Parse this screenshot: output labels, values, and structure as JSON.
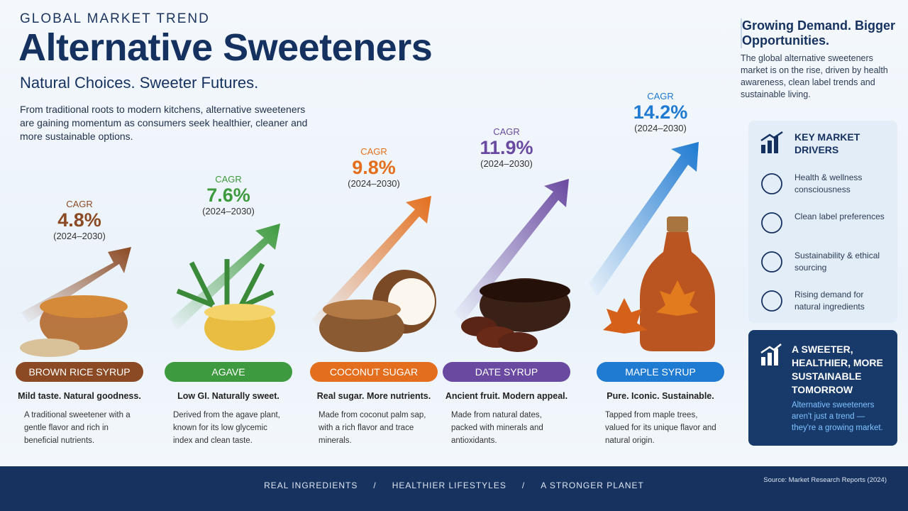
{
  "header": {
    "eyebrow": "GLOBAL MARKET TREND",
    "title": "Alternative Sweeteners",
    "subtitle": "Natural Choices. Sweeter Futures.",
    "intro": "From traditional roots to modern kitchens, alternative sweeteners are gaining momentum as consumers seek healthier, cleaner and more sustainable options."
  },
  "products": [
    {
      "cagr_label": "CAGR",
      "cagr": "4.8%",
      "period": "(2024–2030)",
      "name": "BROWN RICE SYRUP",
      "tagline": "Mild taste. Natural goodness.",
      "description": "A traditional sweetener with a gentle flavor and rich in beneficial nutrients."
    },
    {
      "cagr_label": "CAGR",
      "cagr": "7.6%",
      "period": "(2024–2030)",
      "name": "AGAVE",
      "tagline": "Low GI. Naturally sweet.",
      "description": "Derived from the agave plant, known for its low glycemic index and clean taste."
    },
    {
      "cagr_label": "CAGR",
      "cagr": "9.8%",
      "period": "(2024–2030)",
      "name": "COCONUT SUGAR",
      "tagline": "Real sugar. More nutrients.",
      "description": "Made from coconut palm sap, with a rich flavor and trace minerals."
    },
    {
      "cagr_label": "CAGR",
      "cagr": "11.9%",
      "period": "(2024–2030)",
      "name": "DATE SYRUP",
      "tagline": "Ancient fruit. Modern appeal.",
      "description": "Made from natural dates, packed with minerals and antioxidants."
    },
    {
      "cagr_label": "CAGR",
      "cagr": "14.2%",
      "period": "(2024–2030)",
      "name": "MAPLE SYRUP",
      "tagline": "Pure. Iconic. Sustainable.",
      "description": "Tapped from maple trees, valued for its unique flavor and natural origin."
    }
  ],
  "side": {
    "heading": "Growing Demand. Bigger Opportunities.",
    "text": "The global alternative sweeteners market is on the rise, driven by health awareness, clean label trends and sustainable living.",
    "drivers_title": "KEY MARKET DRIVERS",
    "drivers": [
      "Health & wellness consciousness",
      "Clean label preferences",
      "Sustainability & ethical sourcing",
      "Rising demand for natural ingredients"
    ],
    "callout_title": "A SWEETER, HEALTHIER, MORE SUSTAINABLE TOMORROW",
    "callout_text": "Alternative sweeteners aren't just a trend — they're a growing market."
  },
  "footer": {
    "items": [
      "REAL INGREDIENTS",
      "HEALTHIER LIFESTYLES",
      "A STRONGER PLANET"
    ],
    "separator": "/",
    "source": "Source: Market Research Reports (2024)"
  }
}
